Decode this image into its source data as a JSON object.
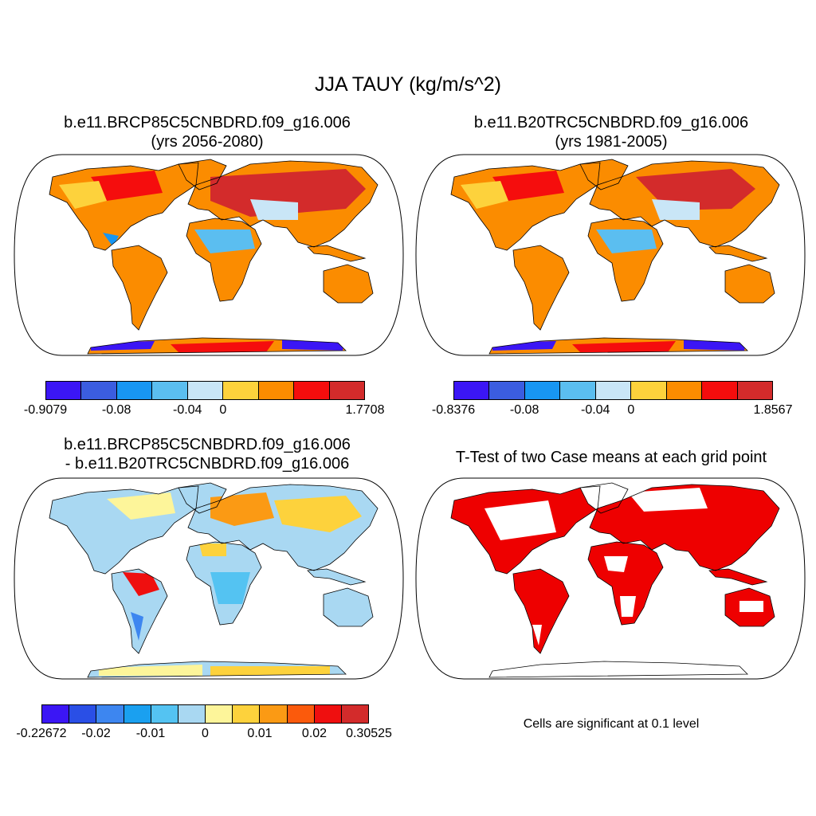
{
  "title": "JJA TAUY (kg/m/s^2)",
  "panels": [
    {
      "title_line1": "b.e11.BRCP85C5CNBDRD.f09_g16.006",
      "title_line2": "(yrs 2056-2080)",
      "colorbar": {
        "colors": [
          "#3b16f5",
          "#3b5de0",
          "#1896f2",
          "#5bbef0",
          "#c9e6f7",
          "#fdd23c",
          "#fb8c00",
          "#f50d0d",
          "#d32b2b"
        ],
        "tick_labels": [
          "-0.9079",
          "-0.08",
          "-0.04",
          "0",
          "1.7708"
        ],
        "tick_positions_index": [
          0,
          2,
          4,
          5,
          9
        ]
      }
    },
    {
      "title_line1": "b.e11.B20TRC5CNBDRD.f09_g16.006",
      "title_line2": "(yrs 1981-2005)",
      "colorbar": {
        "colors": [
          "#3b16f5",
          "#3b5de0",
          "#1896f2",
          "#5bbef0",
          "#c9e6f7",
          "#fdd23c",
          "#fb8c00",
          "#f50d0d",
          "#d32b2b"
        ],
        "tick_labels": [
          "-0.8376",
          "-0.08",
          "-0.04",
          "0",
          "1.8567"
        ],
        "tick_positions_index": [
          0,
          2,
          4,
          5,
          9
        ]
      }
    },
    {
      "title_line1": "b.e11.BRCP85C5CNBDRD.f09_g16.006",
      "title_line2": "- b.e11.B20TRC5CNBDRD.f09_g16.006",
      "colorbar": {
        "colors": [
          "#3b16f5",
          "#2a4fe6",
          "#3d86f0",
          "#1aa0f0",
          "#54c3f2",
          "#a9d8f2",
          "#fdf59a",
          "#fdd23c",
          "#fb9a14",
          "#fb5a0c",
          "#ef0f0f",
          "#d32b2b"
        ],
        "tick_labels": [
          "-0.22672",
          "-0.02",
          "-0.01",
          "0",
          "0.01",
          "0.02",
          "0.30525"
        ],
        "tick_positions_index": [
          0,
          2,
          4,
          6,
          8,
          10,
          12
        ]
      }
    },
    {
      "title_line1": "T-Test of two Case means at each grid point",
      "footer": "Cells are significant at 0.1 level",
      "significance_color": "#ee0000"
    }
  ]
}
